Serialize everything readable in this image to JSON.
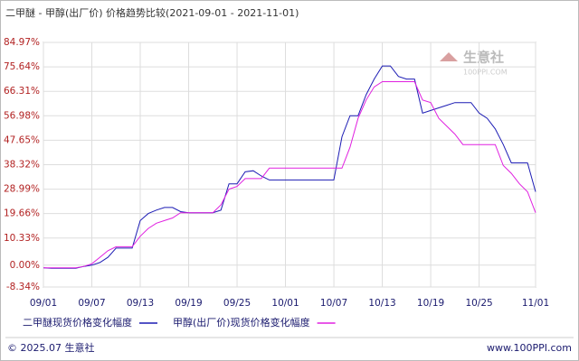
{
  "chart_data": {
    "type": "line",
    "title": "二甲醚 - 甲醇(出厂价) 价格趋势比较(2021-09-01 - 2021-11-01)",
    "x": [
      "09/01",
      "09/02",
      "09/03",
      "09/04",
      "09/05",
      "09/06",
      "09/07",
      "09/08",
      "09/09",
      "09/10",
      "09/11",
      "09/12",
      "09/13",
      "09/14",
      "09/15",
      "09/16",
      "09/17",
      "09/18",
      "09/19",
      "09/20",
      "09/21",
      "09/22",
      "09/23",
      "09/24",
      "09/25",
      "09/26",
      "09/27",
      "09/28",
      "09/29",
      "09/30",
      "10/01",
      "10/02",
      "10/03",
      "10/04",
      "10/05",
      "10/06",
      "10/07",
      "10/08",
      "10/09",
      "10/10",
      "10/11",
      "10/12",
      "10/13",
      "10/14",
      "10/15",
      "10/16",
      "10/17",
      "10/18",
      "10/19",
      "10/20",
      "10/21",
      "10/22",
      "10/23",
      "10/24",
      "10/25",
      "10/26",
      "10/27",
      "10/28",
      "10/29",
      "10/30",
      "10/31",
      "11/01"
    ],
    "xticks": [
      "09/01",
      "09/07",
      "09/13",
      "09/19",
      "09/25",
      "10/01",
      "10/07",
      "10/13",
      "10/19",
      "10/25",
      "11/01"
    ],
    "series": [
      {
        "name": "二甲醚现货价格变化幅度",
        "color": "#1c1cb4",
        "values": [
          -1,
          -1.2,
          -1.2,
          -1.2,
          -1.2,
          -0.5,
          0,
          1,
          3,
          6.5,
          6.5,
          6.5,
          17,
          19.7,
          21,
          22,
          22,
          20.4,
          20,
          20,
          20,
          20,
          21,
          31,
          31,
          35.6,
          36,
          34,
          32.5,
          32.5,
          32.5,
          32.5,
          32.5,
          32.5,
          32.5,
          32.5,
          32.5,
          49,
          57,
          57,
          65,
          71,
          76,
          76,
          72,
          71,
          71,
          58,
          59,
          60,
          61,
          62,
          62,
          62,
          58,
          56,
          52,
          46,
          39,
          39,
          39,
          28
        ]
      },
      {
        "name": "甲醇(出厂价)现货价格变化幅度",
        "color": "#e020e0",
        "values": [
          -1,
          -1,
          -1,
          -1,
          -1,
          -0.5,
          0.5,
          3,
          5.5,
          7,
          7,
          7,
          11,
          14,
          16,
          17,
          18,
          20,
          20,
          20,
          20,
          20,
          23,
          29,
          30,
          33,
          33,
          33,
          37,
          37,
          37,
          37,
          37,
          37,
          37,
          37,
          37,
          37,
          45,
          56,
          63,
          68,
          70,
          70,
          70,
          70,
          70,
          63,
          62,
          56,
          53,
          50,
          46,
          46,
          46,
          46,
          46,
          38,
          35,
          31,
          28,
          20
        ]
      }
    ],
    "ylim": [
      -8.34,
      84.97
    ],
    "yticks": [
      {
        "value": -8.34,
        "label": "-8.34%"
      },
      {
        "value": 0,
        "label": "0.00%"
      },
      {
        "value": 10.33,
        "label": "10.33%"
      },
      {
        "value": 19.66,
        "label": "19.66%"
      },
      {
        "value": 28.99,
        "label": "28.99%"
      },
      {
        "value": 38.32,
        "label": "38.32%"
      },
      {
        "value": 47.65,
        "label": "47.65%"
      },
      {
        "value": 56.98,
        "label": "56.98%"
      },
      {
        "value": 66.31,
        "label": "66.31%"
      },
      {
        "value": 75.64,
        "label": "75.64%"
      },
      {
        "value": 84.97,
        "label": "84.97%"
      }
    ],
    "grid": true,
    "watermark": [
      "生意社",
      "100PPI.COM"
    ],
    "footer_left": "© 2025.07 生意社",
    "footer_right": "www.100PPI.com"
  }
}
